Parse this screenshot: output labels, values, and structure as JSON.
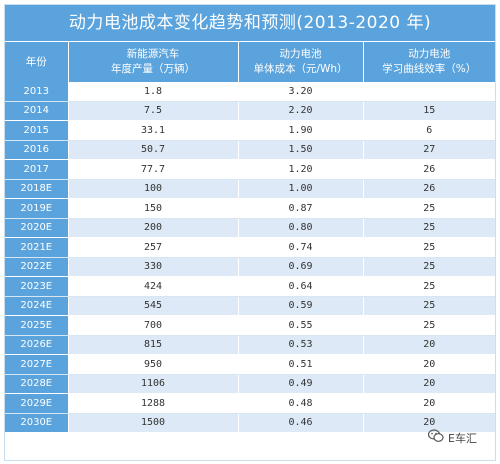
{
  "title": "动力电池成本变化趋势和预测(2013-2020 年)",
  "header": {
    "col0": "年份",
    "col1_l1": "新能源汽车",
    "col1_l2": "年度产量（万辆）",
    "col2_l1": "动力电池",
    "col2_l2": "单体成本（元/Wh）",
    "col3_l1": "动力电池",
    "col3_l2": "学习曲线效率（%）"
  },
  "rows": [
    {
      "year": "2013",
      "output": "1.8",
      "cost": "3.20",
      "rate": ""
    },
    {
      "year": "2014",
      "output": "7.5",
      "cost": "2.20",
      "rate": "15"
    },
    {
      "year": "2015",
      "output": "33.1",
      "cost": "1.90",
      "rate": "6"
    },
    {
      "year": "2016",
      "output": "50.7",
      "cost": "1.50",
      "rate": "27"
    },
    {
      "year": "2017",
      "output": "77.7",
      "cost": "1.20",
      "rate": "26"
    },
    {
      "year": "2018E",
      "output": "100",
      "cost": "1.00",
      "rate": "26"
    },
    {
      "year": "2019E",
      "output": "150",
      "cost": "0.87",
      "rate": "25"
    },
    {
      "year": "2020E",
      "output": "200",
      "cost": "0.80",
      "rate": "25"
    },
    {
      "year": "2021E",
      "output": "257",
      "cost": "0.74",
      "rate": "25"
    },
    {
      "year": "2022E",
      "output": "330",
      "cost": "0.69",
      "rate": "25"
    },
    {
      "year": "2023E",
      "output": "424",
      "cost": "0.64",
      "rate": "25"
    },
    {
      "year": "2024E",
      "output": "545",
      "cost": "0.59",
      "rate": "25"
    },
    {
      "year": "2025E",
      "output": "700",
      "cost": "0.55",
      "rate": "25"
    },
    {
      "year": "2026E",
      "output": "815",
      "cost": "0.53",
      "rate": "20"
    },
    {
      "year": "2027E",
      "output": "950",
      "cost": "0.51",
      "rate": "20"
    },
    {
      "year": "2028E",
      "output": "1106",
      "cost": "0.49",
      "rate": "20"
    },
    {
      "year": "2029E",
      "output": "1288",
      "cost": "0.48",
      "rate": "20"
    },
    {
      "year": "2030E",
      "output": "1500",
      "cost": "0.46",
      "rate": "20"
    }
  ],
  "watermark": {
    "text": "E车汇",
    "icon": "wechat-icon"
  }
}
